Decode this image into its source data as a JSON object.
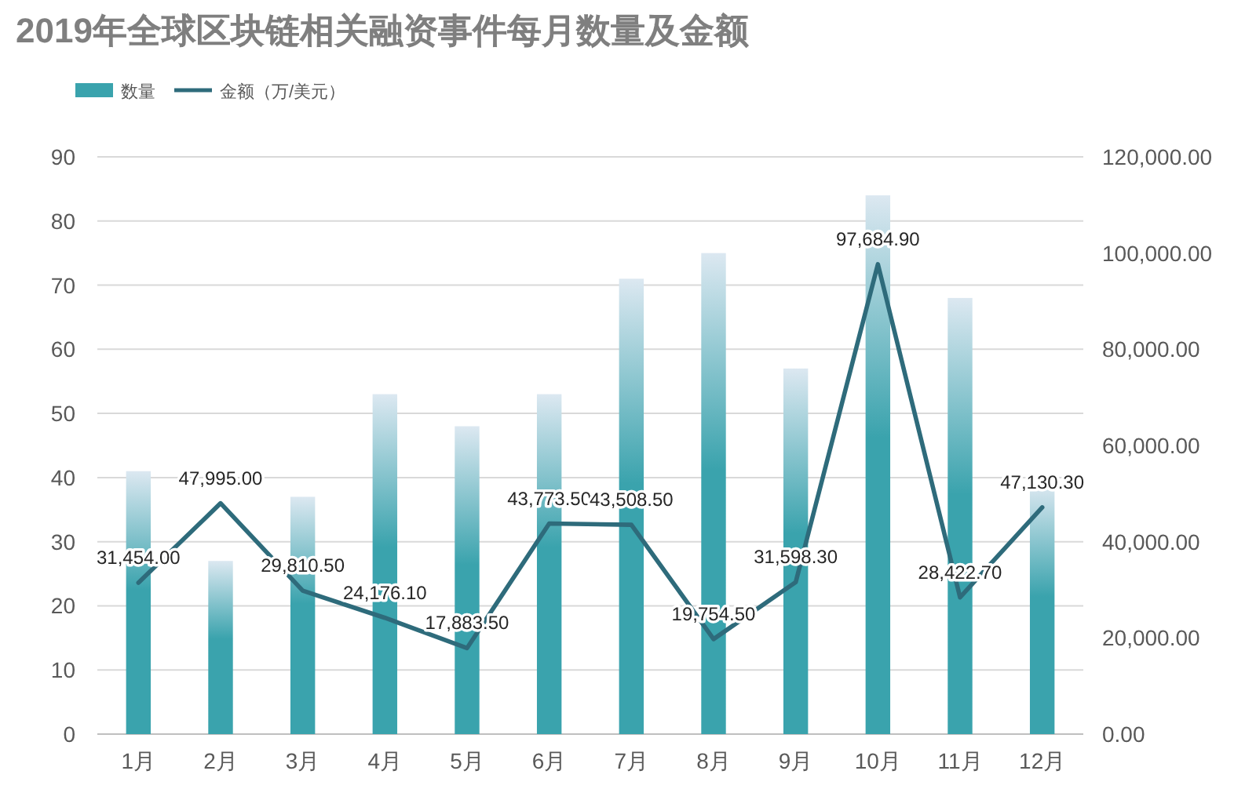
{
  "chart_data": {
    "type": "bar",
    "title": "2019年全球区块链相关融资事件每月数量及金额",
    "categories": [
      "1月",
      "2月",
      "3月",
      "4月",
      "5月",
      "6月",
      "7月",
      "8月",
      "9月",
      "10月",
      "11月",
      "12月"
    ],
    "series": [
      {
        "name": "数量",
        "color": "#3aa3ad",
        "values": [
          41,
          27,
          37,
          53,
          48,
          53,
          71,
          75,
          57,
          84,
          68,
          39
        ]
      },
      {
        "name": "金额（万/美元）",
        "type": "line",
        "axis": "y2",
        "color": "#2e6b7b",
        "values": [
          31454.0,
          47995.0,
          29810.5,
          24176.1,
          17883.5,
          43773.5,
          43508.5,
          19754.5,
          31598.3,
          97684.9,
          28422.7,
          47130.3
        ],
        "value_labels": [
          "31,454.00",
          "47,995.00",
          "29,810.50",
          "24,176.10",
          "17,883.50",
          "43,773.50",
          "43,508.50",
          "19,754.50",
          "31,598.30",
          "97,684.90",
          "28,422.70",
          "47,130.30"
        ]
      }
    ],
    "ylim": [
      0,
      90
    ],
    "yticks": [
      0,
      10,
      20,
      30,
      40,
      50,
      60,
      70,
      80,
      90
    ],
    "y2lim": [
      0,
      120000
    ],
    "y2ticks": [
      {
        "value": 0,
        "label": "0.00"
      },
      {
        "value": 20000,
        "label": "20,000.00"
      },
      {
        "value": 40000,
        "label": "40,000.00"
      },
      {
        "value": 60000,
        "label": "60,000.00"
      },
      {
        "value": 80000,
        "label": "80,000.00"
      },
      {
        "value": 100000,
        "label": "100,000.00"
      },
      {
        "value": 120000,
        "label": "120,000.00"
      }
    ],
    "grid": "y",
    "legend": "top left"
  }
}
